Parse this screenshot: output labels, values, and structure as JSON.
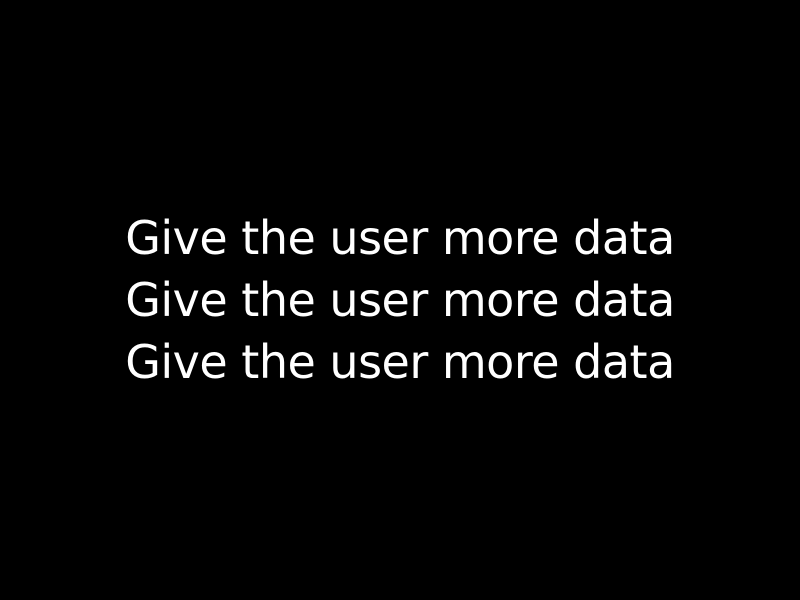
{
  "slide": {
    "background_color": "#000000",
    "text_color": "#ffffff",
    "lines": [
      "Give the user more data",
      "Give the user more data",
      "Give the user more data"
    ]
  }
}
